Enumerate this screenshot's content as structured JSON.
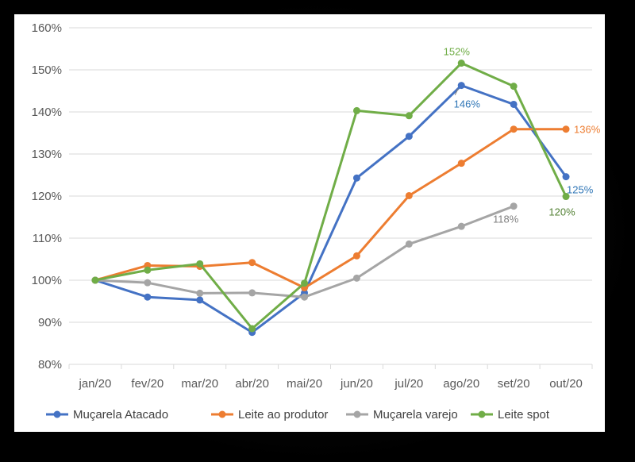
{
  "chart_data": {
    "type": "line",
    "categories": [
      "jan/20",
      "fev/20",
      "mar/20",
      "abr/20",
      "mai/20",
      "jun/20",
      "jul/20",
      "ago/20",
      "set/20",
      "out/20"
    ],
    "ylim": [
      80,
      160
    ],
    "yticks": [
      80,
      90,
      100,
      110,
      120,
      130,
      140,
      150,
      160
    ],
    "ytick_labels": [
      "80%",
      "90%",
      "100%",
      "110%",
      "120%",
      "130%",
      "140%",
      "150%",
      "160%"
    ],
    "grid": true,
    "legend_position": "bottom",
    "series": [
      {
        "name": "Muçarela Atacado",
        "color": "#4472C4",
        "values": [
          100,
          96,
          95.3,
          87.6,
          97,
          124.3,
          134.2,
          146.3,
          141.8,
          124.6
        ]
      },
      {
        "name": "Leite ao produtor",
        "color": "#ED7D31",
        "values": [
          100,
          103.5,
          103.3,
          104.2,
          98.2,
          105.8,
          120.1,
          127.8,
          135.9,
          135.9
        ]
      },
      {
        "name": "Muçarela varejo",
        "color": "#A5A5A5",
        "values": [
          100,
          99.4,
          96.9,
          97,
          96,
          100.5,
          108.6,
          112.8,
          117.6,
          null
        ]
      },
      {
        "name": "Leite spot",
        "color": "#70AD47",
        "values": [
          100,
          102.4,
          103.9,
          88.5,
          99.3,
          140.3,
          139.1,
          151.6,
          146.1,
          119.9
        ]
      }
    ],
    "annotations": [
      {
        "text": "152%",
        "series": "Leite spot",
        "category": "ago/20",
        "color": "#70AD47"
      },
      {
        "text": "146%",
        "series": "Muçarela Atacado",
        "category": "ago/20",
        "color": "#2E75B6"
      },
      {
        "text": "136%",
        "series": "Leite ao produtor",
        "category": "out/20",
        "color": "#ED7D31"
      },
      {
        "text": "125%",
        "series": "Muçarela Atacado",
        "category": "out/20",
        "color": "#2E75B6"
      },
      {
        "text": "120%",
        "series": "Leite spot",
        "category": "out/20",
        "color": "#548235"
      },
      {
        "text": "118%",
        "series": "Muçarela varejo",
        "category": "set/20",
        "color": "#808080"
      }
    ]
  }
}
